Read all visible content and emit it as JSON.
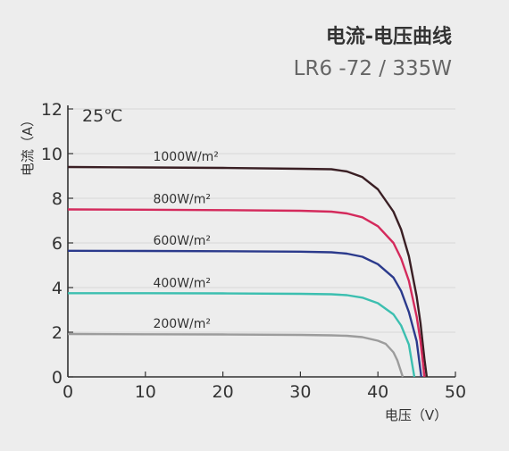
{
  "chart_data": {
    "type": "line",
    "title": "电流-电压曲线",
    "subtitle": "LR6 -72 / 335W",
    "annotation": "25℃",
    "xlabel": "电压（V）",
    "ylabel": "电流（A）",
    "xlim": [
      0,
      50
    ],
    "ylim": [
      0,
      12
    ],
    "xticks": [
      0,
      10,
      20,
      30,
      40,
      50
    ],
    "yticks": [
      0,
      2,
      4,
      6,
      8,
      10,
      12
    ],
    "grid": true,
    "legend_placement": "inline-above-curves",
    "series": [
      {
        "name": "1000W/m²",
        "color": "#3a1f24",
        "points": [
          [
            0,
            9.4
          ],
          [
            10,
            9.38
          ],
          [
            20,
            9.36
          ],
          [
            30,
            9.32
          ],
          [
            34,
            9.3
          ],
          [
            36,
            9.2
          ],
          [
            38,
            8.95
          ],
          [
            40,
            8.4
          ],
          [
            42,
            7.4
          ],
          [
            43,
            6.6
          ],
          [
            44,
            5.4
          ],
          [
            45,
            3.6
          ],
          [
            45.5,
            2.4
          ],
          [
            46,
            0.8
          ],
          [
            46.3,
            0
          ]
        ]
      },
      {
        "name": "800W/m²",
        "color": "#d42a5c",
        "points": [
          [
            0,
            7.5
          ],
          [
            10,
            7.49
          ],
          [
            20,
            7.47
          ],
          [
            30,
            7.44
          ],
          [
            34,
            7.4
          ],
          [
            36,
            7.32
          ],
          [
            38,
            7.15
          ],
          [
            40,
            6.75
          ],
          [
            42,
            6.0
          ],
          [
            43,
            5.3
          ],
          [
            44,
            4.3
          ],
          [
            45,
            2.7
          ],
          [
            45.5,
            1.6
          ],
          [
            46,
            0
          ]
        ]
      },
      {
        "name": "600W/m²",
        "color": "#2b3a8c",
        "points": [
          [
            0,
            5.65
          ],
          [
            10,
            5.64
          ],
          [
            20,
            5.63
          ],
          [
            30,
            5.61
          ],
          [
            34,
            5.58
          ],
          [
            36,
            5.52
          ],
          [
            38,
            5.38
          ],
          [
            40,
            5.05
          ],
          [
            42,
            4.45
          ],
          [
            43,
            3.85
          ],
          [
            44,
            2.9
          ],
          [
            45,
            1.6
          ],
          [
            45.6,
            0
          ]
        ]
      },
      {
        "name": "400W/m²",
        "color": "#3cbfb0",
        "points": [
          [
            0,
            3.75
          ],
          [
            10,
            3.75
          ],
          [
            20,
            3.74
          ],
          [
            30,
            3.72
          ],
          [
            34,
            3.7
          ],
          [
            36,
            3.66
          ],
          [
            38,
            3.55
          ],
          [
            40,
            3.3
          ],
          [
            42,
            2.8
          ],
          [
            43,
            2.3
          ],
          [
            44,
            1.45
          ],
          [
            44.7,
            0
          ]
        ]
      },
      {
        "name": "200W/m²",
        "color": "#9c9c9c",
        "points": [
          [
            0,
            1.92
          ],
          [
            10,
            1.91
          ],
          [
            20,
            1.9
          ],
          [
            30,
            1.88
          ],
          [
            34,
            1.86
          ],
          [
            36,
            1.84
          ],
          [
            38,
            1.78
          ],
          [
            40,
            1.62
          ],
          [
            41,
            1.48
          ],
          [
            42,
            1.1
          ],
          [
            42.5,
            0.75
          ],
          [
            43.2,
            0
          ]
        ]
      }
    ]
  }
}
